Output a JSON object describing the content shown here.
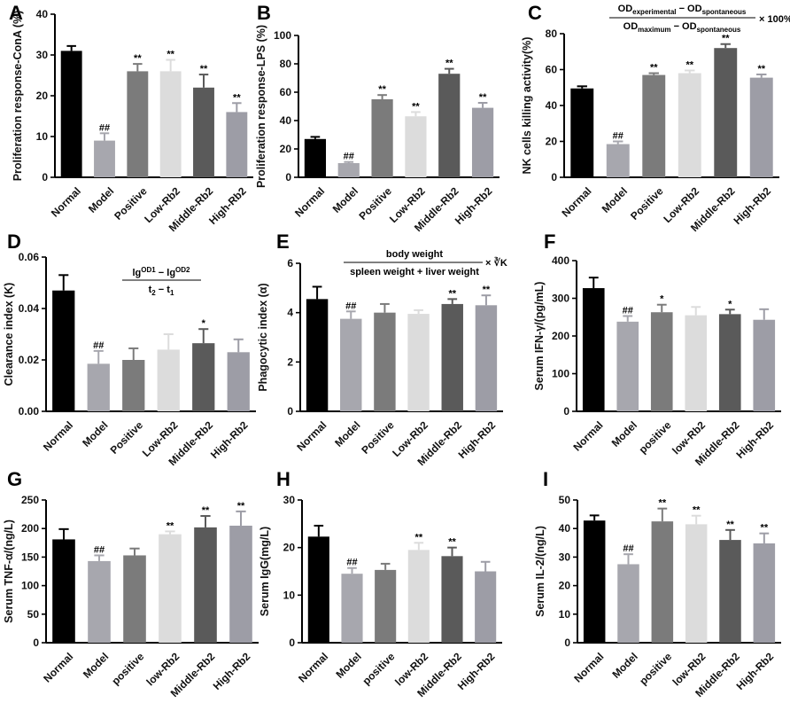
{
  "colors": [
    "#000000",
    "#a7a7ae",
    "#7b7b7b",
    "#dcdcdc",
    "#5a5a5a",
    "#9d9da6"
  ],
  "chart_data": [
    {
      "panel": "A",
      "type": "bar",
      "ylabel": "Proliferation response-ConA (%)",
      "ylim": [
        0,
        40
      ],
      "yticks": [
        0,
        10,
        20,
        30,
        40
      ],
      "ytick_labels": [
        "0",
        "10",
        "20",
        "30",
        "40"
      ],
      "categories": [
        "Normal",
        "Model",
        "Positive",
        "Low-Rb2",
        "Middle-Rb2",
        "High-Rb2"
      ],
      "values": [
        31,
        9,
        26,
        26,
        22,
        16
      ],
      "errors": [
        1.2,
        1.8,
        1.8,
        2.8,
        3.2,
        2.2
      ],
      "significance": [
        "",
        "##",
        "**",
        "**",
        "**",
        "**"
      ]
    },
    {
      "panel": "B",
      "type": "bar",
      "ylabel": "Proliferation response-LPS (%)",
      "ylim": [
        0,
        100
      ],
      "yticks": [
        0,
        20,
        40,
        60,
        80,
        100
      ],
      "ytick_labels": [
        "0",
        "20",
        "40",
        "60",
        "80",
        "100"
      ],
      "categories": [
        "Normal",
        "Model",
        "Positive",
        "Low-Rb2",
        "Middle-Rb2",
        "High-Rb2"
      ],
      "values": [
        27,
        10,
        55,
        43,
        73,
        49
      ],
      "errors": [
        1.5,
        0.8,
        3,
        3,
        3.5,
        3.5
      ],
      "significance": [
        "",
        "##",
        "**",
        "**",
        "**",
        "**"
      ]
    },
    {
      "panel": "C",
      "type": "bar",
      "ylabel": "NK cells killing activity(%)",
      "ylim": [
        0,
        80
      ],
      "yticks": [
        0,
        20,
        40,
        60,
        80
      ],
      "ytick_labels": [
        "0",
        "20",
        "40",
        "60",
        "80"
      ],
      "categories": [
        "Normal",
        "Model",
        "Positive",
        "Low-Rb2",
        "Middle-Rb2",
        "High-Rb2"
      ],
      "values": [
        49.5,
        18.5,
        57,
        58,
        72,
        55.5
      ],
      "errors": [
        1.2,
        1.5,
        1,
        1.5,
        2.2,
        1.8
      ],
      "significance": [
        "",
        "##",
        "**",
        "**",
        "**",
        "**"
      ],
      "formula": {
        "num_a": "OD",
        "num_a_sub": "experimental",
        "num_mid": " − OD",
        "num_b_sub": "spontaneous",
        "den_a": "OD",
        "den_a_sub": "maximum",
        "den_mid": " − OD",
        "den_b_sub": "spontaneous",
        "suffix": "× 100%"
      }
    },
    {
      "panel": "D",
      "type": "bar",
      "ylabel": "Clearance index (K)",
      "ylim": [
        0,
        0.06
      ],
      "yticks": [
        0,
        0.02,
        0.04,
        0.06
      ],
      "ytick_labels": [
        "0.00",
        "0.02",
        "0.04",
        "0.06"
      ],
      "categories": [
        "Normal",
        "Model",
        "Positive",
        "Low-Rb2",
        "Middle-Rb2",
        "High-Rb2"
      ],
      "values": [
        0.047,
        0.0185,
        0.02,
        0.024,
        0.0265,
        0.023
      ],
      "errors": [
        0.006,
        0.005,
        0.0045,
        0.006,
        0.0055,
        0.005
      ],
      "significance": [
        "",
        "##",
        "",
        "",
        "*",
        ""
      ],
      "formula": {
        "num_a": "lg",
        "num_a_sup": "OD1",
        "num_mid": " − lg",
        "num_b_sup": "OD2",
        "den_a": "t",
        "den_a_sub": "2",
        "den_mid": " − t",
        "den_b_sub": "1"
      }
    },
    {
      "panel": "E",
      "type": "bar",
      "ylabel": "Phagocytic index (α)",
      "ylim": [
        0,
        6
      ],
      "yticks": [
        0,
        2,
        4,
        6
      ],
      "ytick_labels": [
        "0",
        "2",
        "4",
        "6"
      ],
      "categories": [
        "Normal",
        "Model",
        "Positive",
        "Low-Rb2",
        "Middle-Rb2",
        "High-Rb2"
      ],
      "values": [
        4.55,
        3.75,
        4.0,
        3.95,
        4.35,
        4.3
      ],
      "errors": [
        0.5,
        0.3,
        0.35,
        0.15,
        0.2,
        0.4
      ],
      "significance": [
        "",
        "##",
        "",
        "",
        "**",
        "**"
      ],
      "formula": {
        "numerator": "body weight",
        "denominator": "spleen weight + liver weight",
        "suffix": "× ∛K"
      }
    },
    {
      "panel": "F",
      "type": "bar",
      "ylabel": "Serum IFN-γ/(pg/mL)",
      "ylim": [
        0,
        400
      ],
      "yticks": [
        0,
        100,
        200,
        300,
        400
      ],
      "ytick_labels": [
        "0",
        "100",
        "200",
        "300",
        "400"
      ],
      "categories": [
        "Normal",
        "Model",
        "positive",
        "low-Rb2",
        "Middle-Rb2",
        "High-Rb2"
      ],
      "values": [
        327,
        238,
        263,
        255,
        258,
        243
      ],
      "errors": [
        28,
        15,
        20,
        22,
        12,
        28
      ],
      "significance": [
        "",
        "##",
        "*",
        "",
        "*",
        ""
      ]
    },
    {
      "panel": "G",
      "type": "bar",
      "ylabel": "Serum TNF-α/(ng/L)",
      "ylim": [
        0,
        250
      ],
      "yticks": [
        0,
        50,
        100,
        150,
        200,
        250
      ],
      "ytick_labels": [
        "0",
        "50",
        "100",
        "150",
        "200",
        "250"
      ],
      "categories": [
        "Normal",
        "Model",
        "positive",
        "low-Rb2",
        "Middle-Rb2",
        "High-Rb2"
      ],
      "values": [
        181,
        143,
        153,
        190,
        202,
        205
      ],
      "errors": [
        18,
        10,
        12,
        5,
        20,
        25
      ],
      "significance": [
        "",
        "##",
        "",
        "**",
        "**",
        "**"
      ]
    },
    {
      "panel": "H",
      "type": "bar",
      "ylabel": "Serum IgG(mg/L)",
      "ylim": [
        0,
        30
      ],
      "yticks": [
        0,
        10,
        20,
        30
      ],
      "ytick_labels": [
        "0",
        "10",
        "20",
        "30"
      ],
      "categories": [
        "Normal",
        "Model",
        "positive",
        "low-Rb2",
        "Middle-Rb2",
        "High-Rb2"
      ],
      "values": [
        22.3,
        14.5,
        15.3,
        19.5,
        18.2,
        15
      ],
      "errors": [
        2.3,
        1.2,
        1.3,
        1.5,
        1.8,
        2
      ],
      "significance": [
        "",
        "##",
        "",
        "**",
        "**",
        ""
      ]
    },
    {
      "panel": "I",
      "type": "bar",
      "ylabel": "Serum IL-2/(ng/L)",
      "ylim": [
        0,
        50
      ],
      "yticks": [
        0,
        10,
        20,
        30,
        40,
        50
      ],
      "ytick_labels": [
        "0",
        "10",
        "20",
        "30",
        "40",
        "50"
      ],
      "categories": [
        "Normal",
        "Model",
        "positive",
        "low-Rb2",
        "Middle-Rb2",
        "High-Rb2"
      ],
      "values": [
        42.8,
        27.5,
        42.5,
        41.5,
        36,
        34.8
      ],
      "errors": [
        1.8,
        3.5,
        4.5,
        3,
        3.5,
        3.5
      ],
      "significance": [
        "",
        "##",
        "**",
        "**",
        "**",
        "**"
      ]
    }
  ]
}
